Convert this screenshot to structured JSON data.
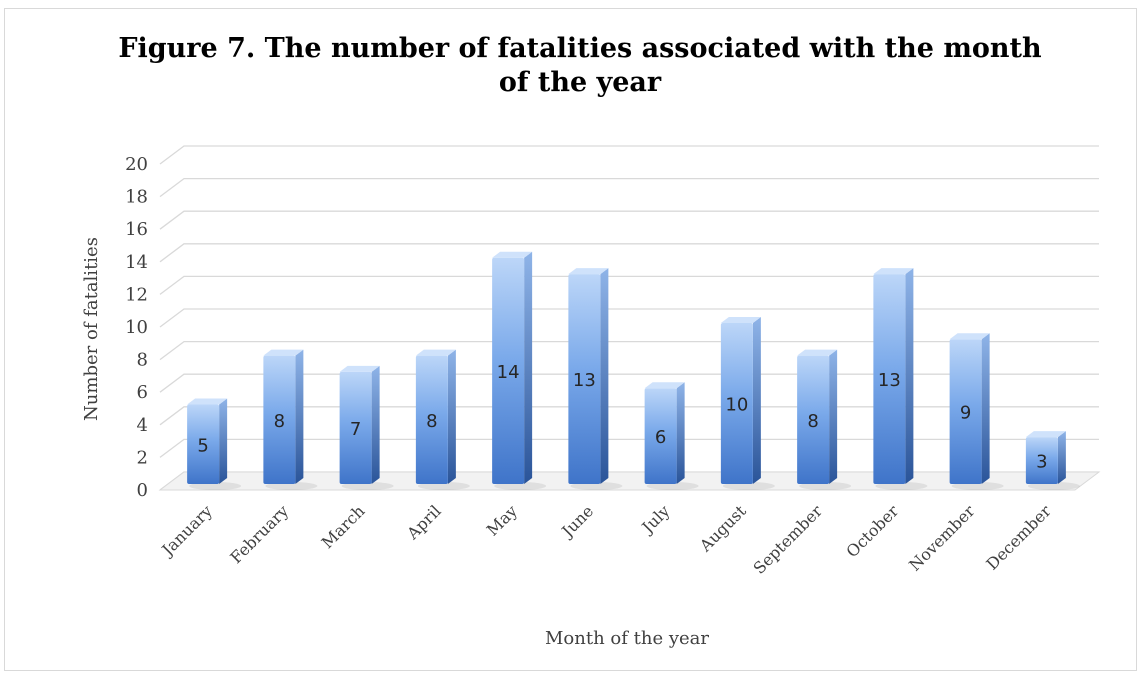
{
  "chart_data": {
    "type": "bar",
    "title": "Figure 7. The number of fatalities associated with the month of the year",
    "xlabel": "Month of the year",
    "ylabel": "Number of fatalities",
    "categories": [
      "January",
      "February",
      "March",
      "April",
      "May",
      "June",
      "July",
      "August",
      "September",
      "October",
      "November",
      "December"
    ],
    "values": [
      5,
      8,
      7,
      8,
      14,
      13,
      6,
      10,
      8,
      13,
      9,
      3
    ],
    "ylim": [
      0,
      20
    ],
    "yticks": [
      0,
      2,
      4,
      6,
      8,
      10,
      12,
      14,
      16,
      18,
      20
    ],
    "grid": true,
    "legend": "none",
    "colors": {
      "bar_top": "#bcd6f8",
      "bar_mid": "#6f9fe6",
      "bar_bottom": "#3d72c8",
      "gridline": "#d9d9d9"
    }
  }
}
